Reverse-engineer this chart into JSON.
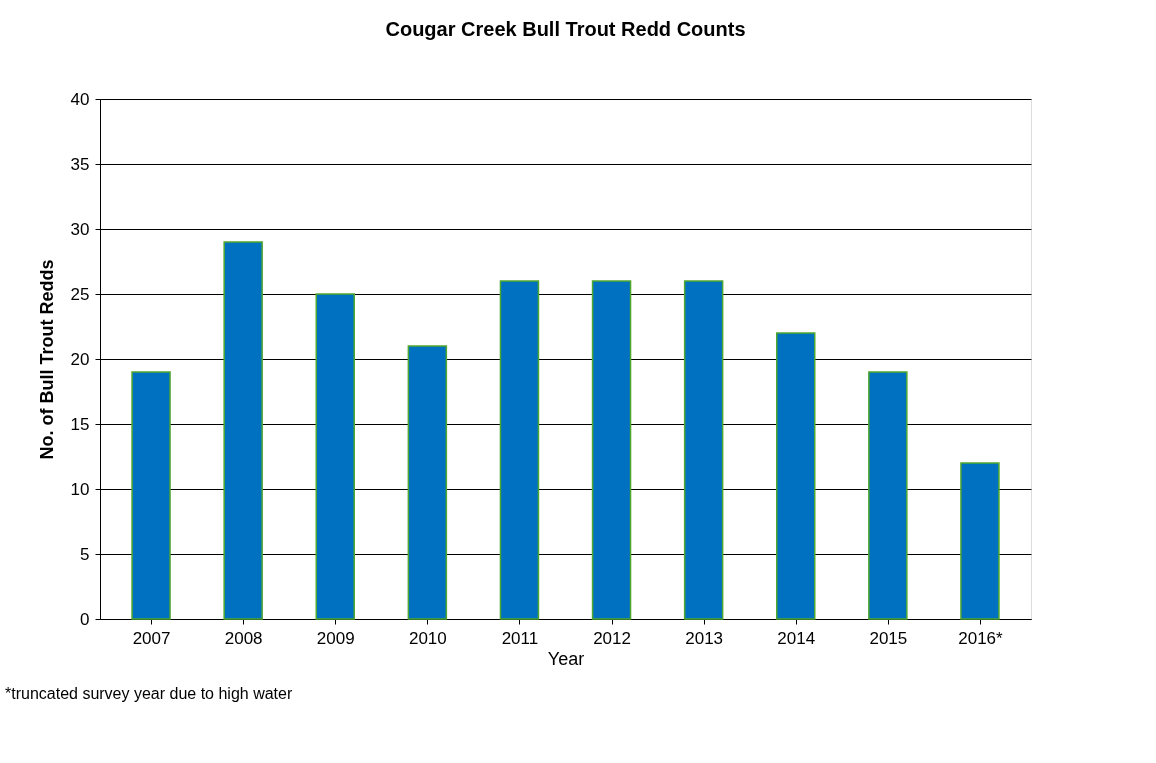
{
  "chart_data": {
    "type": "bar",
    "title": "Cougar Creek Bull Trout Redd Counts",
    "xlabel": "Year",
    "ylabel": "No. of  Bull Trout Redds",
    "categories": [
      "2007",
      "2008",
      "2009",
      "2010",
      "2011",
      "2012",
      "2013",
      "2014",
      "2015",
      "2016*"
    ],
    "values": [
      19,
      29,
      25,
      21,
      26,
      26,
      26,
      22,
      19,
      12
    ],
    "color": "#0070c0",
    "ylim": [
      0,
      40
    ],
    "yticks": [
      0,
      5,
      10,
      15,
      20,
      25,
      30,
      35,
      40
    ],
    "grid": "y",
    "annotations": [
      "*truncated survey year due to high water"
    ]
  }
}
